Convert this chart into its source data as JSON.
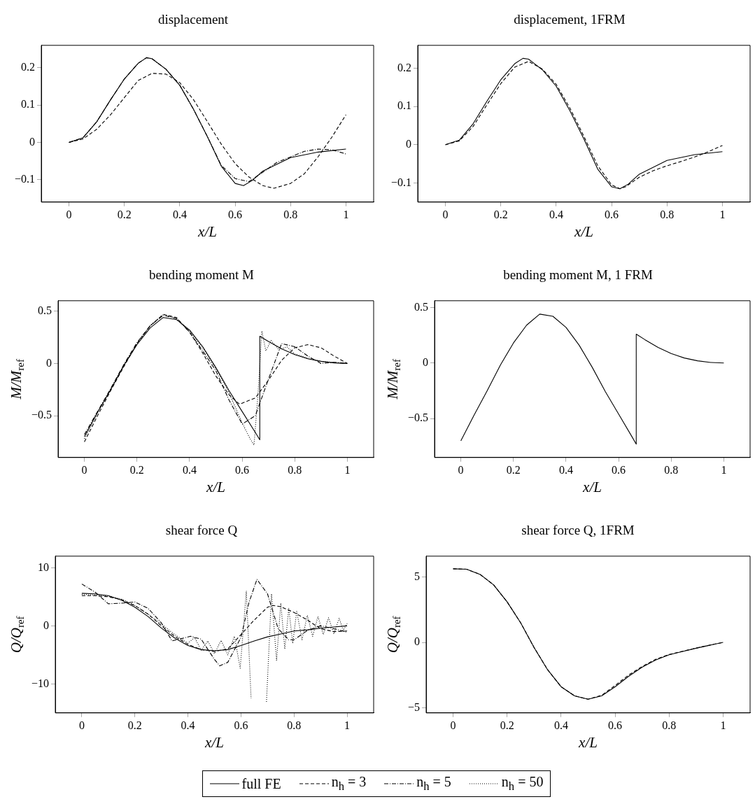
{
  "chart_data": [
    {
      "type": "line",
      "title": "displacement",
      "xlabel": "x/L",
      "xlim": [
        -0.1,
        1.1
      ],
      "xticks": [
        0,
        0.2,
        0.4,
        0.6,
        0.8,
        1
      ],
      "ylim": [
        -0.16,
        0.26
      ],
      "yticks": [
        -0.1,
        0,
        0.1,
        0.2
      ],
      "series": [
        {
          "color": "#000000",
          "line_style": "solid",
          "x": [
            0,
            0.05,
            0.1,
            0.15,
            0.2,
            0.25,
            0.28,
            0.3,
            0.35,
            0.4,
            0.45,
            0.5,
            0.55,
            0.6,
            0.63,
            0.66,
            0.7,
            0.8,
            0.9,
            1
          ],
          "values": [
            0,
            0.012,
            0.055,
            0.114,
            0.17,
            0.212,
            0.227,
            0.224,
            0.196,
            0.153,
            0.088,
            0.015,
            -0.064,
            -0.11,
            -0.116,
            -0.103,
            -0.077,
            -0.041,
            -0.026,
            -0.018
          ]
        },
        {
          "color": "#000000",
          "line_style": "dashed",
          "x": [
            0,
            0.05,
            0.1,
            0.15,
            0.2,
            0.25,
            0.3,
            0.35,
            0.4,
            0.45,
            0.5,
            0.55,
            0.6,
            0.65,
            0.7,
            0.74,
            0.8,
            0.85,
            0.9,
            0.95,
            1
          ],
          "values": [
            0,
            0.009,
            0.035,
            0.074,
            0.12,
            0.166,
            0.185,
            0.183,
            0.16,
            0.114,
            0.055,
            -0.005,
            -0.057,
            -0.093,
            -0.116,
            -0.123,
            -0.11,
            -0.084,
            -0.038,
            0.015,
            0.074
          ]
        },
        {
          "color": "#000000",
          "line_style": "dashdot",
          "x": [
            0,
            0.05,
            0.1,
            0.15,
            0.2,
            0.25,
            0.28,
            0.3,
            0.35,
            0.4,
            0.45,
            0.5,
            0.55,
            0.6,
            0.65,
            0.7,
            0.75,
            0.85,
            0.9,
            0.95,
            1
          ],
          "values": [
            0,
            0.012,
            0.055,
            0.114,
            0.17,
            0.212,
            0.227,
            0.224,
            0.196,
            0.153,
            0.088,
            0.015,
            -0.062,
            -0.097,
            -0.105,
            -0.08,
            -0.054,
            -0.024,
            -0.018,
            -0.02,
            -0.031
          ]
        }
      ]
    },
    {
      "type": "line",
      "title": "displacement, 1FRM",
      "xlabel": "x/L",
      "xlim": [
        -0.1,
        1.1
      ],
      "xticks": [
        0,
        0.2,
        0.4,
        0.6,
        0.8,
        1
      ],
      "ylim": [
        -0.15,
        0.26
      ],
      "yticks": [
        -0.1,
        0,
        0.1,
        0.2
      ],
      "series": [
        {
          "color": "#000000",
          "line_style": "solid",
          "x": [
            0,
            0.05,
            0.1,
            0.15,
            0.2,
            0.25,
            0.28,
            0.3,
            0.35,
            0.4,
            0.45,
            0.5,
            0.55,
            0.6,
            0.63,
            0.66,
            0.7,
            0.8,
            0.9,
            1
          ],
          "values": [
            0,
            0.012,
            0.055,
            0.114,
            0.17,
            0.212,
            0.226,
            0.224,
            0.196,
            0.153,
            0.088,
            0.015,
            -0.064,
            -0.11,
            -0.115,
            -0.103,
            -0.077,
            -0.041,
            -0.026,
            -0.018
          ]
        },
        {
          "color": "#000000",
          "line_style": "dashed",
          "x": [
            0,
            0.05,
            0.1,
            0.15,
            0.2,
            0.25,
            0.3,
            0.35,
            0.4,
            0.45,
            0.5,
            0.55,
            0.6,
            0.63,
            0.65,
            0.7,
            0.75,
            0.8,
            0.85,
            0.9,
            0.95,
            1
          ],
          "values": [
            0,
            0.01,
            0.048,
            0.105,
            0.16,
            0.203,
            0.218,
            0.198,
            0.158,
            0.095,
            0.022,
            -0.055,
            -0.105,
            -0.115,
            -0.11,
            -0.085,
            -0.068,
            -0.055,
            -0.044,
            -0.032,
            -0.018,
            -0.002
          ]
        }
      ]
    },
    {
      "type": "line",
      "title": "bending moment M",
      "xlabel": "x/L",
      "ylabel": "M/M$_{ref}$",
      "xlim": [
        -0.1,
        1.1
      ],
      "xticks": [
        0,
        0.2,
        0.4,
        0.6,
        0.8,
        1
      ],
      "ylim": [
        -0.9,
        0.6
      ],
      "yticks": [
        -0.5,
        0,
        0.5
      ],
      "series": [
        {
          "color": "#000000",
          "line_style": "solid",
          "x": [
            0,
            0.05,
            0.1,
            0.15,
            0.2,
            0.25,
            0.3,
            0.35,
            0.4,
            0.45,
            0.5,
            0.55,
            0.6,
            0.65,
            0.667,
            0.667,
            0.7,
            0.75,
            0.8,
            0.85,
            0.9,
            0.95,
            1
          ],
          "values": [
            -0.7,
            -0.47,
            -0.25,
            -0.02,
            0.18,
            0.34,
            0.44,
            0.42,
            0.32,
            0.16,
            -0.04,
            -0.26,
            -0.46,
            -0.66,
            -0.73,
            0.26,
            0.21,
            0.14,
            0.085,
            0.045,
            0.02,
            0.005,
            0
          ]
        },
        {
          "color": "#000000",
          "line_style": "dashed",
          "x": [
            0,
            0.05,
            0.1,
            0.15,
            0.2,
            0.25,
            0.3,
            0.35,
            0.4,
            0.45,
            0.5,
            0.55,
            0.59,
            0.65,
            0.7,
            0.75,
            0.8,
            0.85,
            0.9,
            0.95,
            1
          ],
          "values": [
            -0.75,
            -0.5,
            -0.26,
            -0.03,
            0.19,
            0.36,
            0.47,
            0.44,
            0.3,
            0.1,
            -0.12,
            -0.3,
            -0.39,
            -0.33,
            -0.16,
            0.03,
            0.15,
            0.18,
            0.15,
            0.07,
            0
          ]
        },
        {
          "color": "#000000",
          "line_style": "dashdot",
          "x": [
            0,
            0.05,
            0.1,
            0.15,
            0.2,
            0.25,
            0.3,
            0.35,
            0.4,
            0.45,
            0.5,
            0.55,
            0.6,
            0.65,
            0.7,
            0.75,
            0.8,
            0.85,
            0.9,
            0.95,
            1
          ],
          "values": [
            -0.68,
            -0.46,
            -0.24,
            -0.01,
            0.2,
            0.36,
            0.46,
            0.43,
            0.3,
            0.12,
            -0.07,
            -0.35,
            -0.58,
            -0.5,
            -0.15,
            0.19,
            0.16,
            0.07,
            0,
            0.01,
            0
          ]
        },
        {
          "color": "#000000",
          "line_style": "dotted",
          "x": [
            0,
            0.05,
            0.1,
            0.15,
            0.2,
            0.25,
            0.3,
            0.35,
            0.4,
            0.45,
            0.5,
            0.55,
            0.6,
            0.63,
            0.645,
            0.66,
            0.675,
            0.69,
            0.71,
            0.74,
            0.77,
            0.8,
            0.85,
            0.9,
            1
          ],
          "values": [
            -0.72,
            -0.47,
            -0.25,
            -0.02,
            0.19,
            0.36,
            0.47,
            0.43,
            0.31,
            0.15,
            -0.05,
            -0.28,
            -0.57,
            -0.72,
            -0.78,
            -0.3,
            0.31,
            0.12,
            0.22,
            0.13,
            0.16,
            0.09,
            0.05,
            0.02,
            0
          ]
        }
      ]
    },
    {
      "type": "line",
      "title": "bending moment M, 1 FRM",
      "xlabel": "x/L",
      "ylabel": "M/M$_{ref}$",
      "xlim": [
        -0.1,
        1.1
      ],
      "xticks": [
        0,
        0.2,
        0.4,
        0.6,
        0.8,
        1
      ],
      "ylim": [
        -0.85,
        0.56
      ],
      "yticks": [
        -0.5,
        0,
        0.5
      ],
      "series": [
        {
          "color": "#000000",
          "line_style": "solid",
          "x": [
            0,
            0.05,
            0.1,
            0.15,
            0.2,
            0.25,
            0.3,
            0.35,
            0.4,
            0.45,
            0.5,
            0.55,
            0.6,
            0.65,
            0.667,
            0.667,
            0.7,
            0.75,
            0.8,
            0.85,
            0.9,
            0.95,
            1
          ],
          "values": [
            -0.7,
            -0.47,
            -0.25,
            -0.02,
            0.18,
            0.34,
            0.44,
            0.42,
            0.32,
            0.16,
            -0.04,
            -0.26,
            -0.46,
            -0.66,
            -0.73,
            0.26,
            0.21,
            0.14,
            0.085,
            0.045,
            0.02,
            0.005,
            0
          ]
        }
      ]
    },
    {
      "type": "line",
      "title": "shear force Q",
      "xlabel": "x/L",
      "ylabel": "Q/Q$_{ref}$",
      "legend": "bottom",
      "xlim": [
        -0.1,
        1.1
      ],
      "xticks": [
        0,
        0.2,
        0.4,
        0.6,
        0.8,
        1
      ],
      "ylim": [
        -15,
        12
      ],
      "yticks": [
        -10,
        0,
        10
      ],
      "series": [
        {
          "name": "full FE",
          "color": "#000000",
          "line_style": "solid",
          "x": [
            0,
            0.05,
            0.1,
            0.15,
            0.2,
            0.25,
            0.3,
            0.35,
            0.4,
            0.45,
            0.5,
            0.55,
            0.6,
            0.65,
            0.7,
            0.75,
            0.8,
            0.85,
            0.9,
            0.95,
            1
          ],
          "values": [
            5.6,
            5.5,
            5.2,
            4.4,
            3.2,
            1.6,
            -0.4,
            -2.1,
            -3.4,
            -4.1,
            -4.3,
            -4.1,
            -3.4,
            -2.6,
            -1.9,
            -1.4,
            -0.9,
            -0.7,
            -0.4,
            -0.2,
            0
          ]
        },
        {
          "name": "n$_{h}$ = 3",
          "color": "#000000",
          "line_style": "dashed",
          "x": [
            0,
            0.05,
            0.1,
            0.15,
            0.2,
            0.25,
            0.3,
            0.35,
            0.4,
            0.45,
            0.5,
            0.55,
            0.6,
            0.65,
            0.7,
            0.72,
            0.75,
            0.8,
            0.85,
            0.9,
            0.95,
            1
          ],
          "values": [
            5.2,
            5.2,
            5,
            4.5,
            3.5,
            2,
            0,
            -1.8,
            -3.2,
            -4.1,
            -4.4,
            -4,
            -1.5,
            1,
            3.2,
            3.5,
            3.3,
            2.3,
            1,
            -0.5,
            -1,
            -0.9
          ]
        },
        {
          "name": "n$_{h}$ = 5",
          "color": "#000000",
          "line_style": "dashdot",
          "x": [
            0,
            0.05,
            0.1,
            0.15,
            0.2,
            0.25,
            0.3,
            0.34,
            0.41,
            0.45,
            0.5,
            0.52,
            0.55,
            0.6,
            0.63,
            0.66,
            0.7,
            0.74,
            0.78,
            0.8,
            0.85,
            0.9,
            0.95,
            1
          ],
          "values": [
            7.2,
            5.8,
            3.8,
            3.9,
            4.1,
            3,
            0.5,
            -2.6,
            -1.8,
            -2.3,
            -5.8,
            -6.9,
            -6.3,
            -2,
            4,
            8,
            5.5,
            -0.5,
            -2.4,
            -2.4,
            -0.8,
            0,
            -0.5,
            -1.1
          ]
        },
        {
          "name": "n$_{h}$ = 50",
          "color": "#000000",
          "line_style": "dotted",
          "x": [
            0,
            0.05,
            0.1,
            0.15,
            0.2,
            0.25,
            0.3,
            0.35,
            0.4,
            0.425,
            0.45,
            0.475,
            0.5,
            0.525,
            0.55,
            0.575,
            0.597,
            0.62,
            0.638,
            0.655,
            0.68,
            0.696,
            0.715,
            0.734,
            0.75,
            0.765,
            0.78,
            0.795,
            0.81,
            0.83,
            0.85,
            0.87,
            0.89,
            0.91,
            0.93,
            0.95,
            0.97,
            0.985,
            1
          ],
          "values": [
            5.4,
            5.3,
            5.1,
            4.6,
            3.5,
            2,
            0.3,
            -1.5,
            -3,
            -2,
            -4.2,
            -2.6,
            -4.8,
            -2.5,
            -5,
            -1.8,
            -7.3,
            6,
            -12.5,
            null,
            null,
            -13.1,
            5.5,
            -6,
            3.9,
            -4,
            3,
            -3,
            2.5,
            -2.4,
            1.8,
            -1.8,
            1.6,
            -1.5,
            1.4,
            -1.4,
            1.3,
            -0.8,
            0.4
          ]
        }
      ]
    },
    {
      "type": "line",
      "title": "shear force Q, 1FRM",
      "xlabel": "x/L",
      "ylabel": "Q/Q$_{ref}$",
      "xlim": [
        -0.1,
        1.1
      ],
      "xticks": [
        0,
        0.2,
        0.4,
        0.6,
        0.8,
        1
      ],
      "ylim": [
        -5.4,
        6.6
      ],
      "yticks": [
        -5,
        0,
        5
      ],
      "series": [
        {
          "color": "#000000",
          "line_style": "solid",
          "x": [
            0,
            0.05,
            0.1,
            0.15,
            0.2,
            0.25,
            0.3,
            0.35,
            0.4,
            0.45,
            0.5,
            0.55,
            0.6,
            0.65,
            0.7,
            0.75,
            0.8,
            0.85,
            0.9,
            0.95,
            1
          ],
          "values": [
            5.63,
            5.6,
            5.2,
            4.4,
            3.1,
            1.5,
            -0.4,
            -2.1,
            -3.4,
            -4.1,
            -4.35,
            -4.1,
            -3.4,
            -2.6,
            -1.9,
            -1.35,
            -0.95,
            -0.7,
            -0.45,
            -0.22,
            0
          ]
        },
        {
          "color": "#000000",
          "line_style": "dashed",
          "x": [
            0,
            0.05,
            0.1,
            0.15,
            0.2,
            0.25,
            0.3,
            0.35,
            0.4,
            0.45,
            0.5,
            0.55,
            0.6,
            0.65,
            0.7,
            0.75,
            0.8,
            0.85,
            0.9,
            0.95,
            1
          ],
          "values": [
            5.63,
            5.6,
            5.2,
            4.4,
            3.1,
            1.5,
            -0.4,
            -2.1,
            -3.4,
            -4.1,
            -4.35,
            -4.05,
            -3.3,
            -2.5,
            -1.85,
            -1.3,
            -0.93,
            -0.68,
            -0.44,
            -0.21,
            0
          ]
        }
      ]
    }
  ]
}
